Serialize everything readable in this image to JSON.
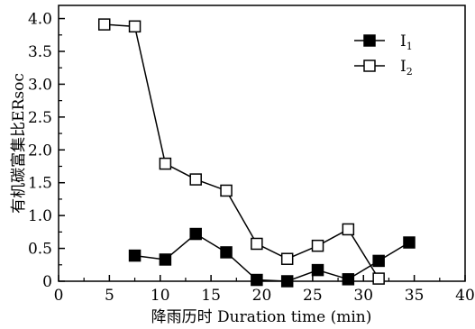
{
  "chart_data": {
    "type": "line",
    "xlabel": "降雨历时 Duration time (min)",
    "ylabel": "有机碳富集比ERsoc",
    "xlim": [
      0,
      40
    ],
    "ylim": [
      0,
      4.2
    ],
    "x_ticks": [
      0,
      5,
      10,
      15,
      20,
      25,
      30,
      35,
      40
    ],
    "y_ticks": [
      0.0,
      0.5,
      1.0,
      1.5,
      2.0,
      2.5,
      3.0,
      3.5,
      4.0
    ],
    "x_tick_labels": [
      "0",
      "5",
      "10",
      "15",
      "20",
      "25",
      "30",
      "35",
      "40"
    ],
    "y_tick_labels": [
      "0",
      "0.5",
      "1.0",
      "1.5",
      "2.0",
      "2.5",
      "3.0",
      "3.5",
      "4.0"
    ],
    "legend_position": "top-right",
    "grid": false,
    "series": [
      {
        "name": "I1",
        "name_main": "I",
        "name_sub": "1",
        "marker": "filled-square",
        "color": "#000000",
        "x": [
          7.5,
          10.5,
          13.5,
          16.5,
          19.5,
          22.5,
          25.5,
          28.5,
          31.5,
          34.5
        ],
        "y": [
          0.39,
          0.33,
          0.72,
          0.44,
          0.02,
          0.0,
          0.17,
          0.03,
          0.31,
          0.59
        ]
      },
      {
        "name": "I2",
        "name_main": "I",
        "name_sub": "2",
        "marker": "open-square",
        "color": "#000000",
        "x": [
          4.5,
          7.5,
          10.5,
          13.5,
          16.5,
          19.5,
          22.5,
          25.5,
          28.5,
          31.5
        ],
        "y": [
          3.91,
          3.88,
          1.79,
          1.55,
          1.38,
          0.57,
          0.34,
          0.54,
          0.79,
          0.04
        ]
      }
    ]
  }
}
